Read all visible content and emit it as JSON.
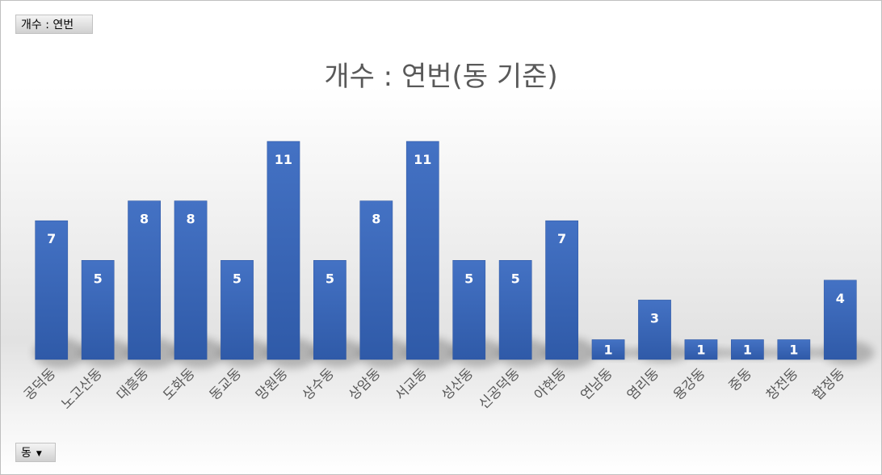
{
  "pivot_field_buttons": {
    "values_field": "개수 : 연번",
    "axis_field": "동"
  },
  "icons": {
    "axis_field_dropdown": "dropdown-arrow-icon"
  },
  "colors": {
    "bar": "#3a66bd",
    "data_label": "#ffffff",
    "axis_label": "#595959",
    "title": "#595959"
  },
  "chart_data": {
    "type": "bar",
    "title": "개수 : 연번(동 기준)",
    "xlabel": "",
    "ylabel": "",
    "categories": [
      "공덕동",
      "노고산동",
      "대흥동",
      "도화동",
      "동교동",
      "망원동",
      "상수동",
      "상암동",
      "서교동",
      "성산동",
      "신공덕동",
      "아현동",
      "연남동",
      "염리동",
      "용강동",
      "중동",
      "창전동",
      "합정동"
    ],
    "series": [
      {
        "values": [
          7,
          5,
          8,
          8,
          5,
          11,
          5,
          8,
          11,
          5,
          5,
          7,
          1,
          3,
          1,
          1,
          1,
          4
        ]
      }
    ],
    "ylim": [
      0,
      11
    ],
    "data_labels": true,
    "legend": "none",
    "grid": false
  }
}
